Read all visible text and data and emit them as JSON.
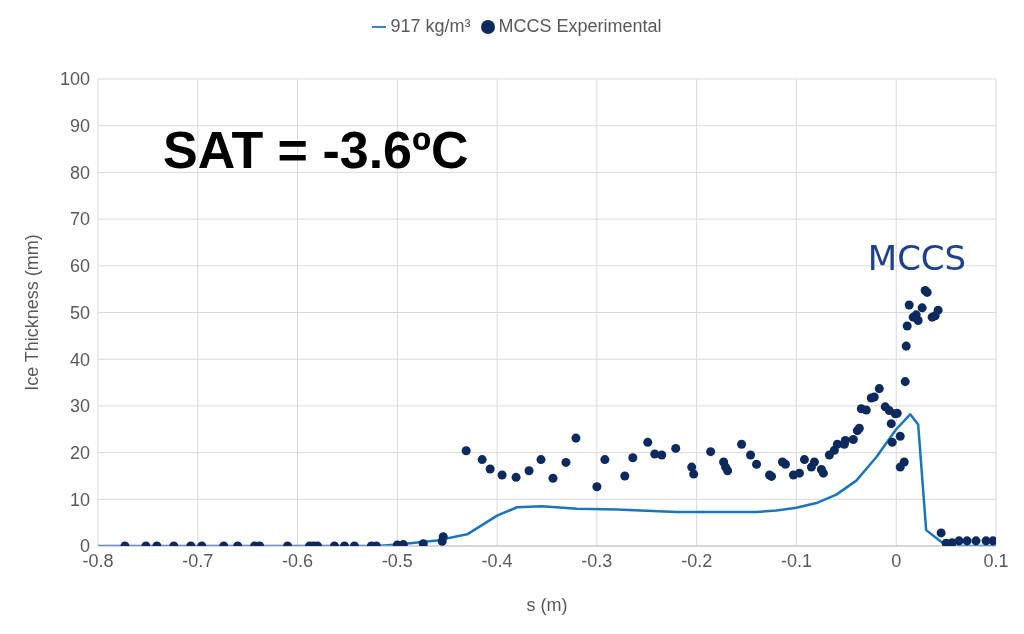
{
  "chart_data": {
    "type": "line",
    "xlabel": "s (m)",
    "ylabel": "Ice Thickness (mm)",
    "xlim": [
      -0.8,
      0.1
    ],
    "xticks": [
      -0.8,
      -0.7,
      -0.6,
      -0.5,
      -0.4,
      -0.3,
      -0.2,
      -0.1,
      0,
      0.1
    ],
    "ylim": [
      0,
      100
    ],
    "yticks": [
      0,
      10,
      20,
      30,
      40,
      50,
      60,
      70,
      80,
      90,
      100
    ],
    "grid": true,
    "legend": "top",
    "annotations": [
      "SAT = -3.6ºC",
      "MCCS"
    ],
    "series": [
      {
        "name": "917 kg/m³",
        "color": "#1a75bc",
        "marker": "none",
        "line_style": "solid",
        "x": [
          -0.8,
          -0.52,
          -0.5,
          -0.46,
          -0.43,
          -0.4,
          -0.38,
          -0.355,
          -0.32,
          -0.28,
          -0.22,
          -0.18,
          -0.14,
          -0.12,
          -0.1,
          -0.08,
          -0.06,
          -0.04,
          -0.02,
          0,
          0.014,
          0.022,
          0.03,
          0.045,
          0.056,
          0.1
        ],
        "values": [
          0,
          0,
          0.3,
          1.2,
          2.5,
          6.5,
          8.3,
          8.5,
          8.0,
          7.8,
          7.3,
          7.3,
          7.3,
          7.6,
          8.2,
          9.2,
          11,
          14,
          19,
          25,
          28.2,
          26,
          3.4,
          0.9,
          0,
          0
        ]
      },
      {
        "name": "MCCS Experimental",
        "type": "scatter",
        "color": "#0d2a5e",
        "marker": "circle",
        "x": [
          -0.773,
          -0.752,
          -0.741,
          -0.724,
          -0.707,
          -0.696,
          -0.674,
          -0.66,
          -0.643,
          -0.638,
          -0.61,
          -0.588,
          -0.584,
          -0.58,
          -0.563,
          -0.553,
          -0.543,
          -0.526,
          -0.521,
          -0.5,
          -0.494,
          -0.474,
          -0.455,
          -0.454,
          -0.431,
          -0.415,
          -0.407,
          -0.395,
          -0.381,
          -0.368,
          -0.356,
          -0.344,
          -0.331,
          -0.321,
          -0.3,
          -0.292,
          -0.272,
          -0.264,
          -0.249,
          -0.242,
          -0.235,
          -0.221,
          -0.205,
          -0.203,
          -0.186,
          -0.173,
          -0.171,
          -0.169,
          -0.155,
          -0.146,
          -0.14,
          -0.127,
          -0.125,
          -0.114,
          -0.111,
          -0.103,
          -0.097,
          -0.092,
          -0.085,
          -0.082,
          -0.075,
          -0.073,
          -0.067,
          -0.062,
          -0.059,
          -0.052,
          -0.051,
          -0.043,
          -0.039,
          -0.037,
          -0.035,
          -0.03,
          -0.025,
          -0.022,
          -0.017,
          -0.011,
          -0.007,
          -0.005,
          -0.004,
          -0.001,
          0.001,
          0.004,
          0.004,
          0.008,
          0.009,
          0.01,
          0.011,
          0.013,
          0.017,
          0.02,
          0.022,
          0.026,
          0.029,
          0.031,
          0.036,
          0.039,
          0.042,
          0.045,
          0.05,
          0.056,
          0.063,
          0.071,
          0.08,
          0.09,
          0.097
        ],
        "values": [
          0,
          0,
          0,
          0,
          0,
          0,
          0,
          0,
          0,
          0,
          0,
          0,
          0,
          0,
          0,
          0,
          0,
          0,
          0,
          0.2,
          0.3,
          0.5,
          1,
          2,
          20.4,
          18.5,
          16.5,
          15.2,
          14.7,
          16.1,
          18.5,
          14.5,
          17.9,
          23.1,
          12.7,
          18.5,
          15,
          18.9,
          22.2,
          19.7,
          19.5,
          20.9,
          16.9,
          15.4,
          20.2,
          18,
          16.9,
          16.1,
          21.8,
          19.5,
          17.5,
          15.2,
          14.9,
          18,
          17.5,
          15.2,
          15.6,
          18.5,
          16.9,
          18,
          16.4,
          15.6,
          19.5,
          20.5,
          21.8,
          21.8,
          22.6,
          22.8,
          24.7,
          25.2,
          29.4,
          29.1,
          31.7,
          31.9,
          33.7,
          29.8,
          29,
          26.2,
          22.2,
          28.3,
          28.4,
          23.5,
          16.9,
          18,
          35.2,
          42.8,
          47.1,
          51.6,
          49,
          49.5,
          48.3,
          51,
          54.7,
          54.3,
          49,
          49.3,
          50.5,
          2.8,
          0.6,
          0.7,
          1.1,
          1.1,
          1.1,
          1.1,
          1.1
        ]
      }
    ]
  }
}
